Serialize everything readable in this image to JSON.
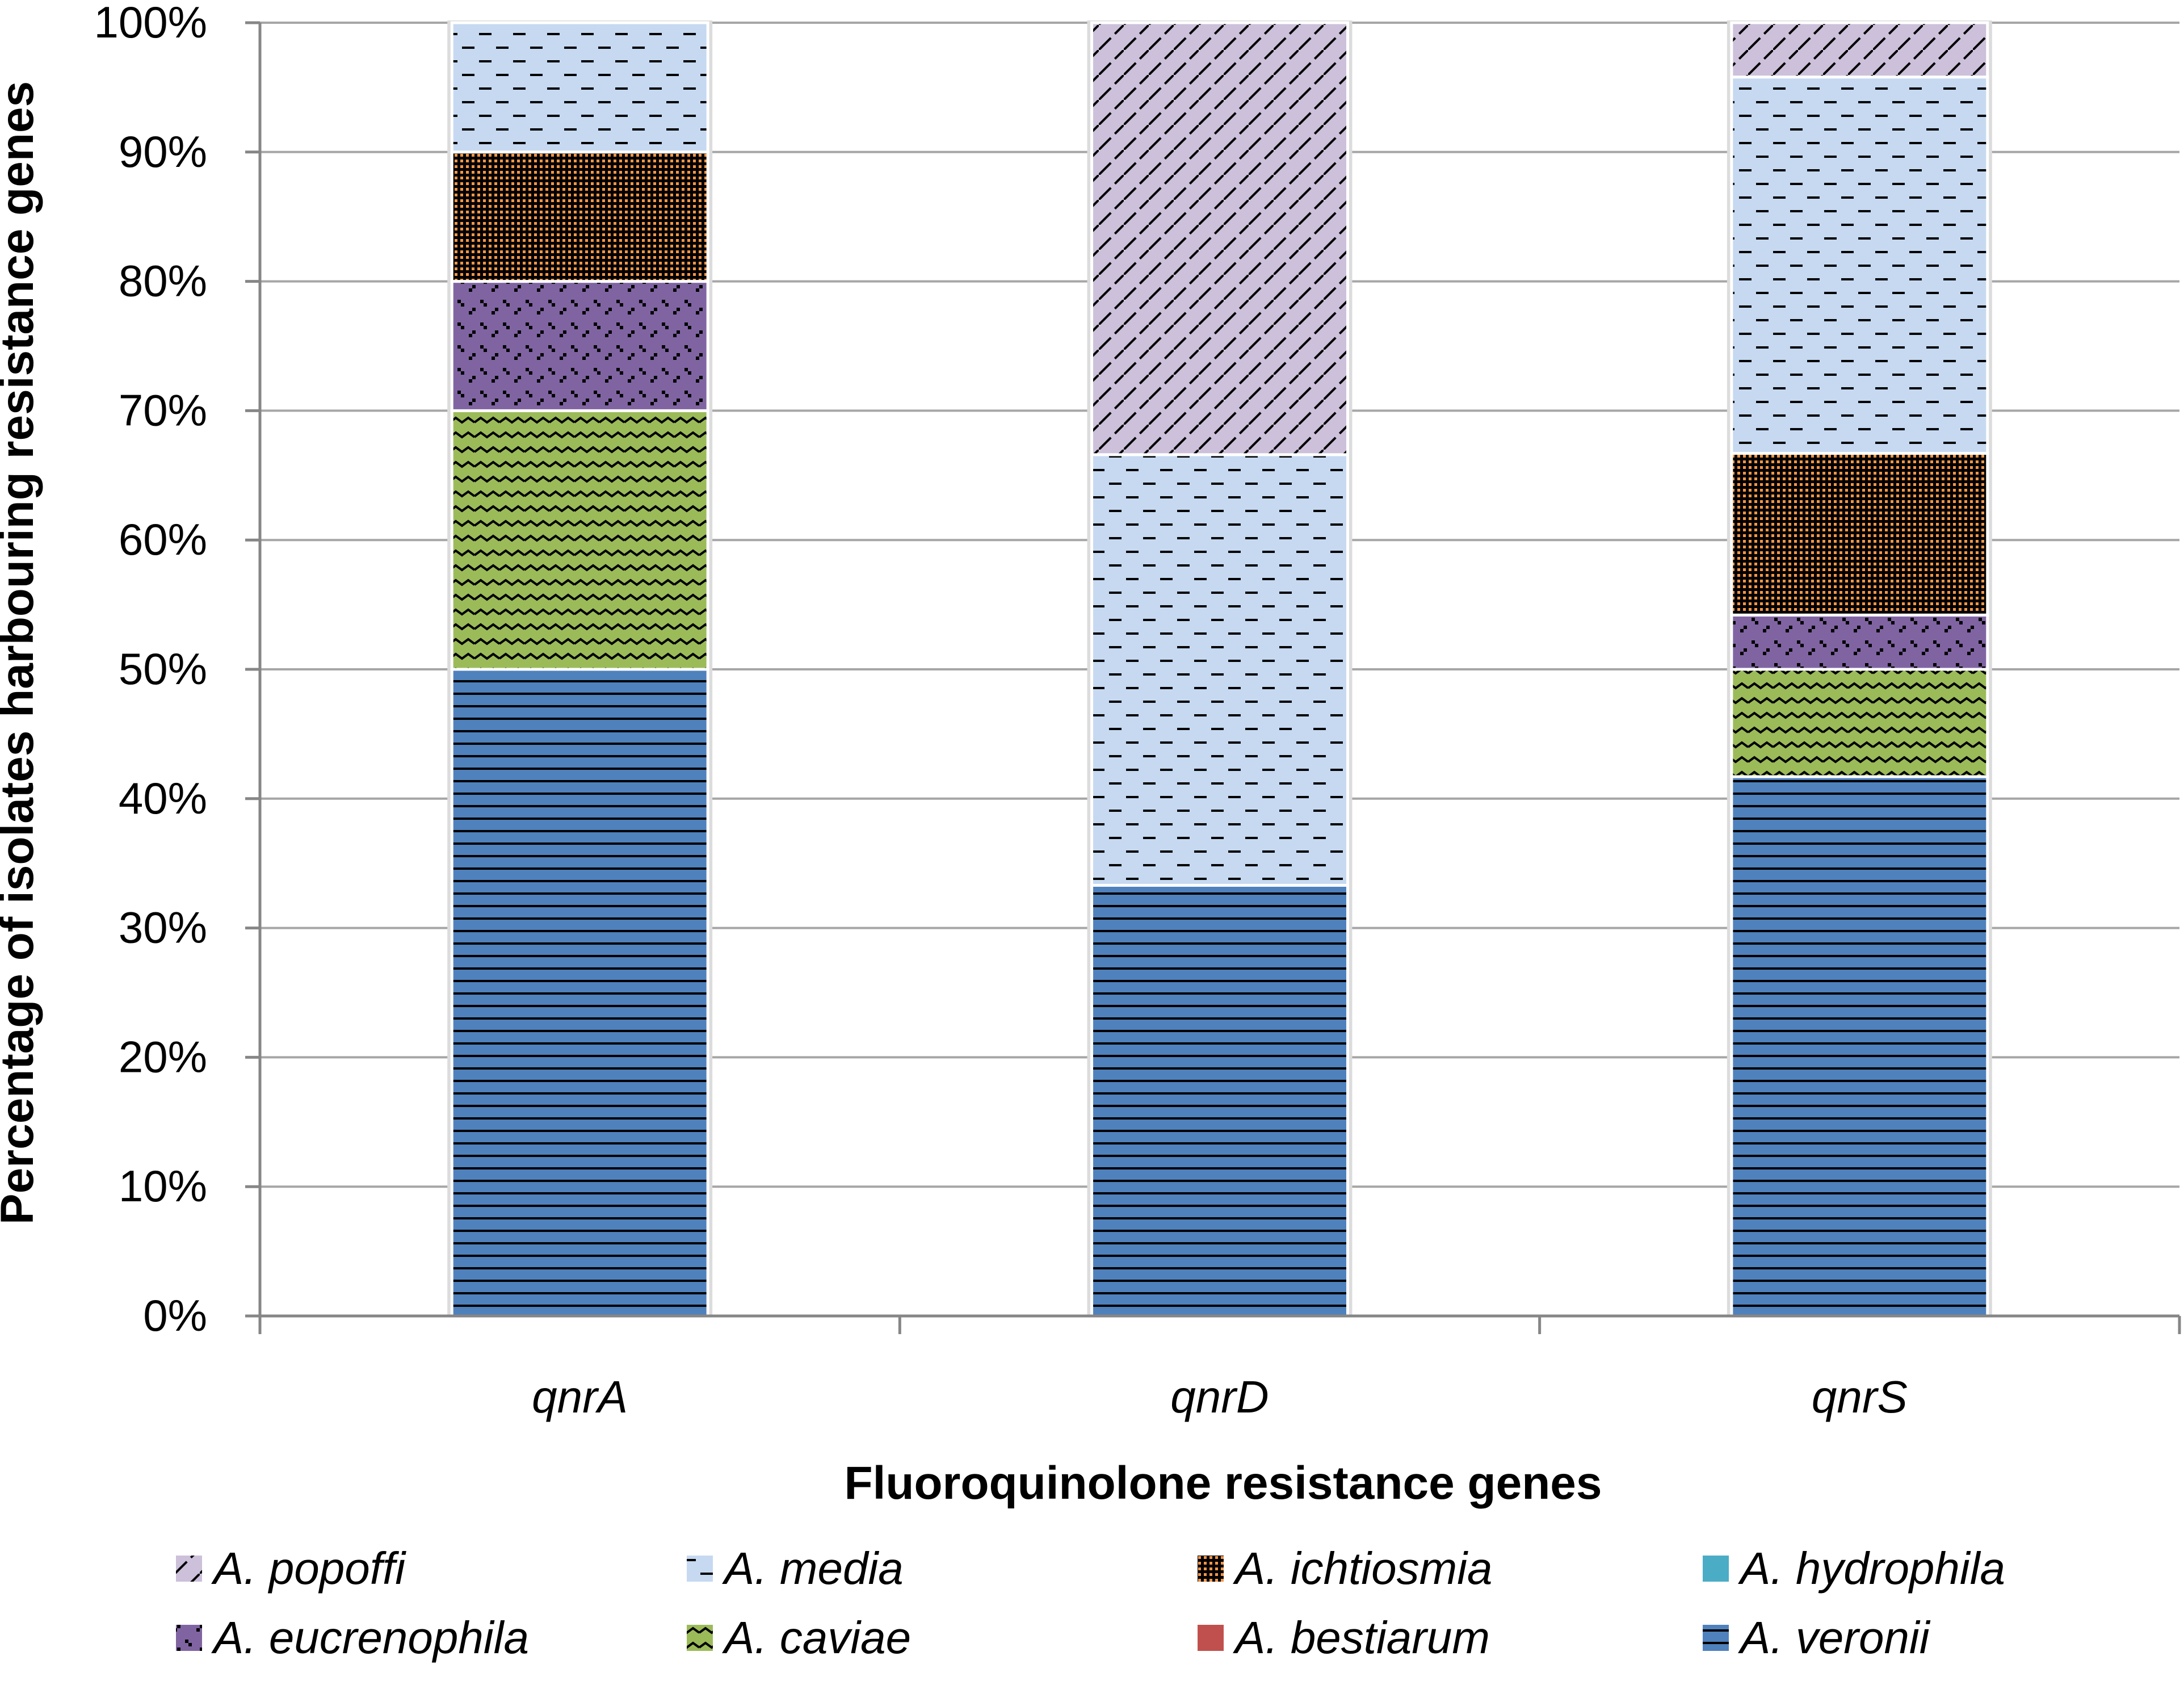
{
  "chart_data": {
    "type": "bar",
    "stacked": true,
    "title": "",
    "xlabel": "Fluoroquinolone resistance genes",
    "ylabel": "Percentage of isolates harbouring resistance genes",
    "ylim": [
      0,
      100
    ],
    "yticks": [
      "0%",
      "10%",
      "20%",
      "30%",
      "40%",
      "50%",
      "60%",
      "70%",
      "80%",
      "90%",
      "100%"
    ],
    "categories": [
      "qnrA",
      "qnrD",
      "qnrS"
    ],
    "grid": true,
    "legend_position": "bottom",
    "series": [
      {
        "name": "A. veronii",
        "color": "#4f81bd",
        "pattern": "hlines",
        "values": [
          50,
          33.3,
          41.7
        ]
      },
      {
        "name": "A. bestiarum",
        "color": "#c0504d",
        "pattern": "solid",
        "values": [
          0,
          0,
          0
        ]
      },
      {
        "name": "A. caviae",
        "color": "#9bbb59",
        "pattern": "wave",
        "values": [
          20,
          0,
          8.3
        ]
      },
      {
        "name": "A. eucrenophila",
        "color": "#8064a2",
        "pattern": "dots",
        "values": [
          10,
          0,
          4.2
        ]
      },
      {
        "name": "A. ichtiosmia",
        "color": "#f79646",
        "pattern": "grid",
        "values": [
          10,
          0,
          12.5
        ]
      },
      {
        "name": "A. media",
        "color": "#c6d9f1",
        "pattern": "dashes",
        "values": [
          10,
          33.3,
          29.1
        ]
      },
      {
        "name": "A. popoffi",
        "color": "#ccc0da",
        "pattern": "diag",
        "values": [
          0,
          33.4,
          4.2
        ]
      },
      {
        "name": "A. hydrophila",
        "color": "#4bacc6",
        "pattern": "solid",
        "values": [
          0,
          0,
          0
        ]
      }
    ],
    "legend_order": [
      "A. popoffi",
      "A. media",
      "A. ichtiosmia",
      "A. hydrophila",
      "A. eucrenophila",
      "A. caviae",
      "A. bestiarum",
      "A. veronii"
    ]
  }
}
